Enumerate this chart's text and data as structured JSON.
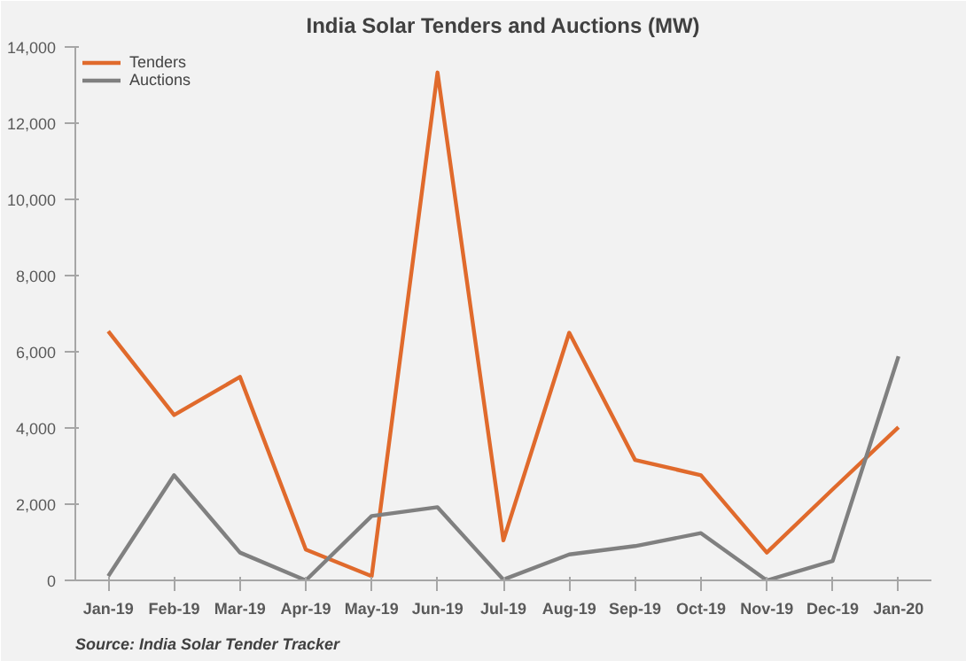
{
  "chart_data": {
    "type": "line",
    "title": "India Solar Tenders and Auctions (MW)",
    "categories": [
      "Jan-19",
      "Feb-19",
      "Mar-19",
      "Apr-19",
      "May-19",
      "Jun-19",
      "Jul-19",
      "Aug-19",
      "Sep-19",
      "Oct-19",
      "Nov-19",
      "Dec-19",
      "Jan-20"
    ],
    "series": [
      {
        "name": "Tenders",
        "color": "#e06a2c",
        "values": [
          6540,
          4340,
          5340,
          810,
          110,
          13330,
          1050,
          6500,
          3160,
          2760,
          730,
          2390,
          4020
        ]
      },
      {
        "name": "Auctions",
        "color": "#808080",
        "values": [
          110,
          2760,
          730,
          0,
          1690,
          1920,
          20,
          680,
          900,
          1240,
          0,
          510,
          5880
        ]
      }
    ],
    "ylim": [
      0,
      14000
    ],
    "yticks": [
      {
        "value": 0,
        "label": "0"
      },
      {
        "value": 2000,
        "label": "2,000"
      },
      {
        "value": 4000,
        "label": "4,000"
      },
      {
        "value": 6000,
        "label": "6,000"
      },
      {
        "value": 8000,
        "label": "8,000"
      },
      {
        "value": 10000,
        "label": "10,000"
      },
      {
        "value": 12000,
        "label": "12,000"
      },
      {
        "value": 14000,
        "label": "14,000"
      }
    ],
    "grid": false,
    "legend": "top left",
    "marker": "none",
    "line_style": "solid",
    "annotations": [
      "Source: India Solar Tender Tracker"
    ]
  }
}
